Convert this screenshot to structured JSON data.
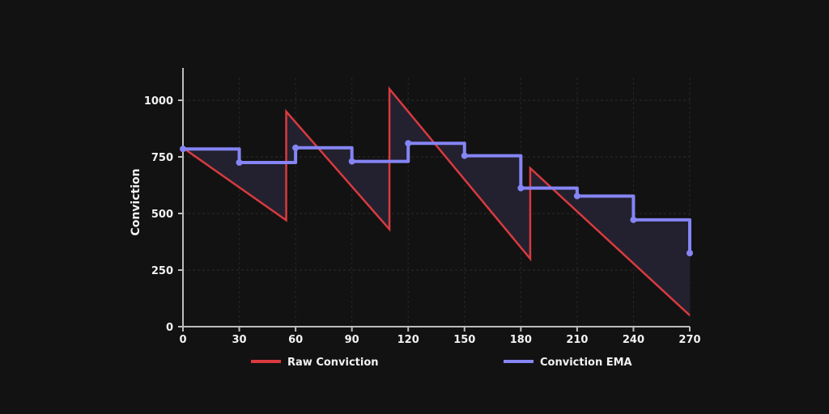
{
  "chart_data": {
    "type": "line",
    "title": "",
    "xlabel": "",
    "ylabel": "Conviction",
    "xlim": [
      0,
      270
    ],
    "ylim": [
      0,
      1100
    ],
    "x_ticks": [
      0,
      30,
      60,
      90,
      120,
      150,
      180,
      210,
      240,
      270
    ],
    "y_ticks": [
      0,
      250,
      500,
      750,
      1000
    ],
    "grid": true,
    "legend_position": "bottom",
    "series": [
      {
        "name": "Raw Conviction",
        "color": "#d93a3f",
        "style": "line",
        "points": [
          [
            0,
            790
          ],
          [
            55,
            470
          ],
          [
            55,
            950
          ],
          [
            110,
            430
          ],
          [
            110,
            1050
          ],
          [
            185,
            300
          ],
          [
            185,
            700
          ],
          [
            270,
            50
          ]
        ]
      },
      {
        "name": "Conviction EMA",
        "color": "#8585f5",
        "style": "step",
        "points": [
          [
            0,
            785
          ],
          [
            30,
            725
          ],
          [
            60,
            790
          ],
          [
            90,
            730
          ],
          [
            120,
            810
          ],
          [
            150,
            755
          ],
          [
            180,
            612
          ],
          [
            210,
            577
          ],
          [
            240,
            472
          ],
          [
            270,
            325
          ]
        ]
      }
    ],
    "fill_between_color": "#23212f"
  }
}
